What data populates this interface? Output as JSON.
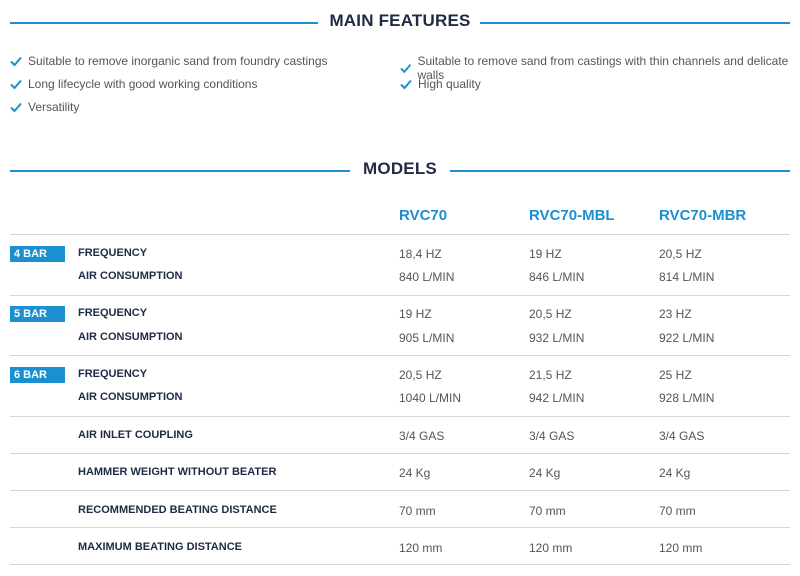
{
  "features": {
    "title": "MAIN FEATURES",
    "items": [
      "Suitable to remove inorganic sand from foundry castings",
      "Long lifecycle with good working conditions",
      "Versatility",
      "Suitable to remove sand from castings with thin channels and delicate walls",
      "High quality"
    ]
  },
  "models": {
    "title": "MODELS",
    "columns": [
      "RVC70",
      "RVC70-MBL",
      "RVC70-MBR"
    ],
    "groups": [
      {
        "badge": "4 BAR",
        "rows": [
          {
            "label": "FREQUENCY",
            "values": [
              "18,4 HZ",
              "19 HZ",
              "20,5 HZ"
            ]
          },
          {
            "label": "AIR CONSUMPTION",
            "values": [
              "840 L/MIN",
              "846 L/MIN",
              "814 L/MIN"
            ]
          }
        ]
      },
      {
        "badge": "5 BAR",
        "rows": [
          {
            "label": "FREQUENCY",
            "values": [
              "19 HZ",
              "20,5 HZ",
              "23 HZ"
            ]
          },
          {
            "label": "AIR CONSUMPTION",
            "values": [
              "905 L/MIN",
              "932 L/MIN",
              "922 L/MIN"
            ]
          }
        ]
      },
      {
        "badge": "6 BAR",
        "rows": [
          {
            "label": "FREQUENCY",
            "values": [
              "20,5 HZ",
              "21,5 HZ",
              "25 HZ"
            ]
          },
          {
            "label": "AIR CONSUMPTION",
            "values": [
              "1040 L/MIN",
              "942 L/MIN",
              "928 L/MIN"
            ]
          }
        ]
      }
    ],
    "specs": [
      {
        "label": "AIR INLET COUPLING",
        "values": [
          "3/4 GAS",
          "3/4 GAS",
          "3/4 GAS"
        ]
      },
      {
        "label": "HAMMER WEIGHT WITHOUT BEATER",
        "values": [
          "24 Kg",
          "24 Kg",
          "24 Kg"
        ]
      },
      {
        "label": "RECOMMENDED BEATING DISTANCE",
        "values": [
          "70 mm",
          "70 mm",
          "70 mm"
        ]
      },
      {
        "label": "MAXIMUM BEATING DISTANCE",
        "values": [
          "120 mm",
          "120 mm",
          "120 mm"
        ]
      }
    ]
  },
  "colors": {
    "accent": "#1c8fd0",
    "heading": "#1f2a44",
    "text": "#555555",
    "divider": "#d6d6d6"
  }
}
